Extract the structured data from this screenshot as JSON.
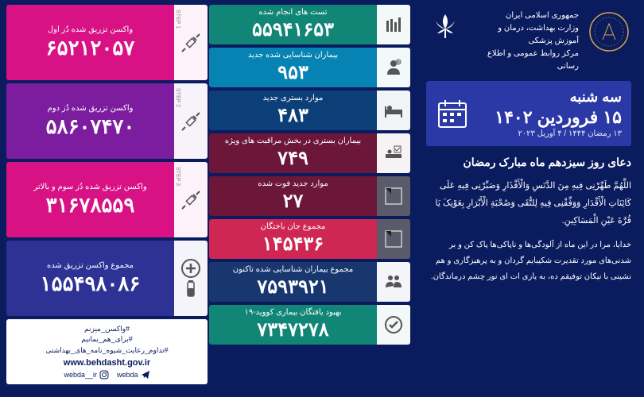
{
  "header": {
    "org_line1": "جمهوری اسلامی ایران",
    "org_line2": "وزارت بهداشت، درمان و آموزش پزشکی",
    "org_line3": "مرکز روابط عمومی و اطلاع رسانی"
  },
  "date": {
    "weekday": "سه شنبه",
    "main": "۱۵ فروردین ۱۴۰۲",
    "sub": "۱۳ رمضان ۱۴۴۴ / ۴ آوریل ۲۰۲۳"
  },
  "prayer": {
    "title": "دعای روز سیزدهم ماه مبارک رمضان",
    "arabic": "اللَّهُمَّ طَهِّرْنِی فِیهِ مِنَ الدَّنَسِ وَالْأَقْذَارِ وَصَبِّرْنِی فِیهِ عَلَی کَائِنَاتِ الْأَقْدَارِ وَوَفِّقْنِی فِیهِ لِلتُّقَی وَصُحْبَةِ الْأَبْرَارِ بِعَوْنِکَ یَا قُرَّةَ عَیْنِ الْمَسَاکِینِ.",
    "persian": "خدایا، مرا در این ماه از آلودگی‌ها و ناپاکی‌ها پاک کن و بر شدنی‌های مورد تقدیرت شکیبایم گردان و به پرهیزگاری و هم نشینی با نیکان توفیقم ده، به یاری ات ای نور چشم درماندگان."
  },
  "stats_middle": [
    {
      "label": "تست های انجام شده",
      "value": "۵۵۹۴۱۶۵۳",
      "bg": "bg-teal",
      "icon": "test"
    },
    {
      "label": "بیماران شناسایی شده جدید",
      "value": "۹۵۳",
      "bg": "bg-blue",
      "icon": "person"
    },
    {
      "label": "موارد بستری جدید",
      "value": "۴۸۳",
      "bg": "bg-navy",
      "icon": "bed"
    },
    {
      "label": "بیماران بستری در بخش مراقبت های ویژه",
      "value": "۷۴۹",
      "bg": "bg-maroon",
      "icon": "icu"
    },
    {
      "label": "موارد جدید فوت شده",
      "value": "۲۷",
      "bg": "bg-maroon",
      "icon": "death",
      "dark_icon": true
    },
    {
      "label": "مجموع جان باختگان",
      "value": "۱۴۵۴۳۶",
      "bg": "bg-red",
      "icon": "death",
      "dark_icon": true
    },
    {
      "label": "مجموع بیماران شناسایی شده تاکنون",
      "value": "۷۵۹۳۹۲۱",
      "bg": "bg-darkblue",
      "icon": "people"
    },
    {
      "label": "بهبود یافتگان بیماری کووید-۱۹",
      "value": "۷۳۴۷۲۷۸",
      "bg": "bg-teal",
      "icon": "recover"
    }
  ],
  "stats_left": [
    {
      "label": "واکسن تزریق شده دُز اول",
      "value": "۶۵۲۱۲۰۵۷",
      "bg": "bg-magenta",
      "step": "STEP 1"
    },
    {
      "label": "واکسن تزریق شده دُز دوم",
      "value": "۵۸۶۰۷۴۷۰",
      "bg": "bg-purple",
      "step": "STEP 2"
    },
    {
      "label": "واکسن تزریق شده دُز سوم و بالاتر",
      "value": "۳۱۶۷۸۵۵۹",
      "bg": "bg-magenta",
      "step": "STEP 3"
    },
    {
      "label": "مجموع واکسن تزریق شده",
      "value": "۱۵۵۴۹۸۰۸۶",
      "bg": "bg-indigo",
      "icon": "total"
    }
  ],
  "footer": {
    "hashtags": "#واکسن_میزنم\n#برای_هم_بمانیم\n#تداوم_رعایت_شیوه_نامه_های_بهداشتی",
    "site": "www.behdasht.gov.ir",
    "telegram": "webda",
    "instagram": "webda__ir"
  },
  "colors": {
    "background": "#0a1b5e",
    "date_box": "#2b39a7"
  }
}
